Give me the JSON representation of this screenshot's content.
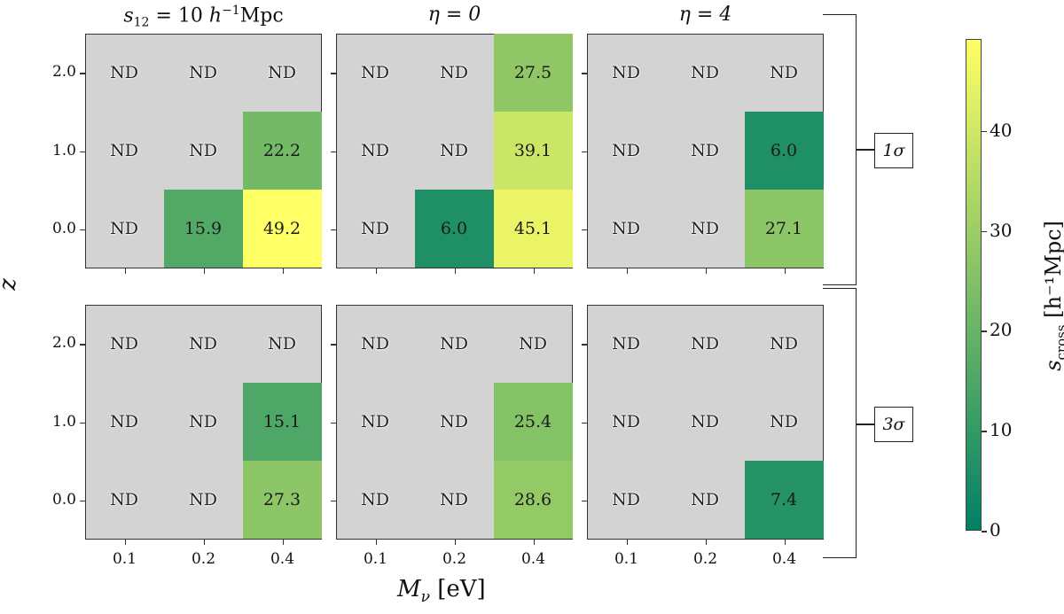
{
  "chart_data": {
    "type": "heatmap",
    "xlabel": "M_ν [eV]",
    "ylabel": "z",
    "x_categories": [
      "0.1",
      "0.2",
      "0.4"
    ],
    "y_categories": [
      "0.0",
      "1.0",
      "2.0"
    ],
    "column_titles": [
      "s_12 = 10 h^-1 Mpc",
      "η = 0",
      "η = 4"
    ],
    "row_labels": [
      "1σ",
      "3σ"
    ],
    "colorbar": {
      "label": "s_cross [h^-1 Mpc]",
      "range": [
        0,
        49.2
      ],
      "ticks": [
        0,
        10,
        20,
        30,
        40
      ],
      "colormap": "summer_r-like (dark green to yellow)"
    },
    "missing_label": "ND",
    "missing_color": "#d3d3d3",
    "panels": [
      {
        "row": "1σ",
        "column": "s_12 = 10 h^-1 Mpc",
        "values": {
          "2.0": [
            null,
            null,
            null
          ],
          "1.0": [
            null,
            null,
            22.2
          ],
          "0.0": [
            null,
            15.9,
            49.2
          ]
        }
      },
      {
        "row": "1σ",
        "column": "η = 0",
        "values": {
          "2.0": [
            null,
            null,
            27.5
          ],
          "1.0": [
            null,
            null,
            39.1
          ],
          "0.0": [
            null,
            6.0,
            45.1
          ]
        }
      },
      {
        "row": "1σ",
        "column": "η = 4",
        "values": {
          "2.0": [
            null,
            null,
            null
          ],
          "1.0": [
            null,
            null,
            6.0
          ],
          "0.0": [
            null,
            null,
            27.1
          ]
        }
      },
      {
        "row": "3σ",
        "column": "s_12 = 10 h^-1 Mpc",
        "values": {
          "2.0": [
            null,
            null,
            null
          ],
          "1.0": [
            null,
            null,
            15.1
          ],
          "0.0": [
            null,
            null,
            27.3
          ]
        }
      },
      {
        "row": "3σ",
        "column": "η = 0",
        "values": {
          "2.0": [
            null,
            null,
            null
          ],
          "1.0": [
            null,
            null,
            25.4
          ],
          "0.0": [
            null,
            null,
            28.6
          ]
        }
      },
      {
        "row": "3σ",
        "column": "η = 4",
        "values": {
          "2.0": [
            null,
            null,
            null
          ],
          "1.0": [
            null,
            null,
            null
          ],
          "0.0": [
            null,
            null,
            7.4
          ]
        }
      }
    ]
  },
  "labels": {
    "title_1_sym": "s",
    "title_1_sub": "12",
    "title_1_rest": " = 10 ",
    "title_1_h": "h",
    "title_1_sup": "−1",
    "title_1_unit": "Mpc",
    "title_2": "η = 0",
    "title_3": "η = 4",
    "row_1": "1σ",
    "row_2": "3σ",
    "ylabel": "z",
    "xlabel_sym": "M",
    "xlabel_sub": "ν",
    "xlabel_unit": " [eV]",
    "cbar_sym": "s",
    "cbar_sub": "cross",
    "cbar_unit": " [h⁻¹Mpc]",
    "nd": "ND"
  }
}
